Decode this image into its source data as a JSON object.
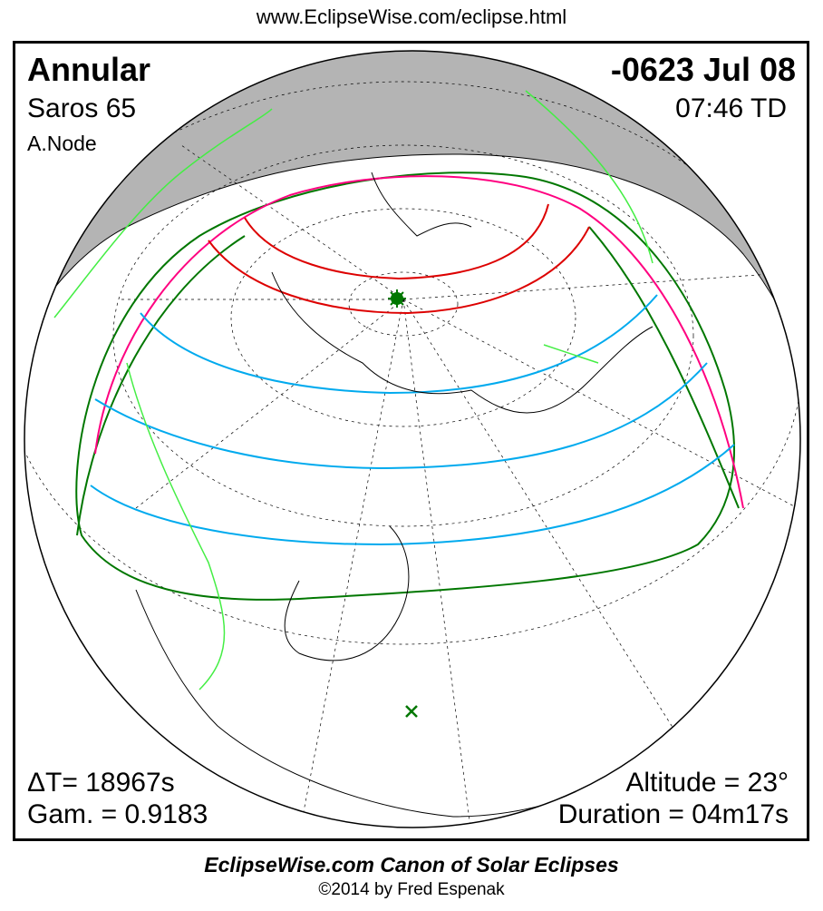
{
  "url": "www.EclipseWise.com/eclipse.html",
  "eclipse": {
    "type": "Annular",
    "date": "-0623 Jul 08",
    "saros": "Saros  65",
    "time": "07:46 TD",
    "node": "A.Node",
    "delta_t": "ΔT=  18967s",
    "gamma": "Gam. = 0.9183",
    "altitude": "Altitude = 23°",
    "duration": "Duration = 04m17s"
  },
  "footer": {
    "title": "EclipseWise.com Canon of Solar Eclipses",
    "copyright": "©2014 by Fred Espenak"
  },
  "colors": {
    "night_shade": "#b4b4b4",
    "penumbra_limits": "#007700",
    "annular_path_limits": "#ff0080",
    "eclipse_at_sunrise_sunset": "#dd0000",
    "magnitude_contours": "#00aaee",
    "borders": "#44ee44",
    "greatest_eclipse_marker": "#007700"
  }
}
